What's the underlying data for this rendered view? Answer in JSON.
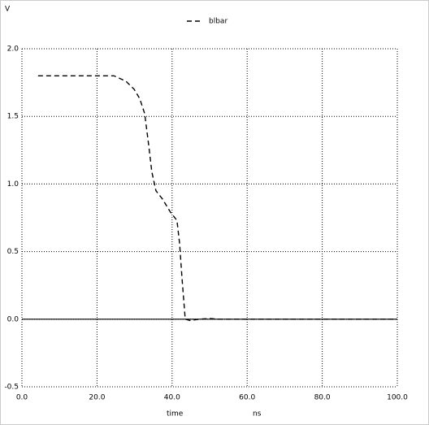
{
  "chart_data": {
    "type": "line",
    "y_label": "V",
    "x_label": "time",
    "x_unit": "ns",
    "xlim": [
      0,
      100
    ],
    "ylim": [
      -0.5,
      2.0
    ],
    "xticks": [
      {
        "value": 0,
        "label": "0.0"
      },
      {
        "value": 20,
        "label": "20.0"
      },
      {
        "value": 40,
        "label": "40.0"
      },
      {
        "value": 60,
        "label": "60.0"
      },
      {
        "value": 80,
        "label": "80.0"
      },
      {
        "value": 100,
        "label": "100.0"
      }
    ],
    "yticks": [
      -0.5,
      {
        "value": 0,
        "label": "0.0"
      },
      0.5,
      {
        "value": 1,
        "label": "1.0"
      },
      1.5,
      {
        "value": 2,
        "label": "2.0"
      }
    ],
    "grid": true,
    "zero_line": true,
    "series": [
      {
        "name": "blbar",
        "color": "#000000",
        "dashed": true,
        "x": [
          4.3,
          24.5,
          27.7,
          29.9,
          31.4,
          32.7,
          33.8,
          34.6,
          35.7,
          37.4,
          39.6,
          41.3,
          42.0,
          42.6,
          43.5,
          44.8,
          47.2,
          50,
          52.6,
          100
        ],
        "values": [
          1.8,
          1.8,
          1.76,
          1.7,
          1.63,
          1.52,
          1.28,
          1.09,
          0.95,
          0.89,
          0.79,
          0.73,
          0.56,
          0.32,
          0.0,
          -0.01,
          0.0,
          0.005,
          0.0,
          0.0
        ]
      }
    ]
  }
}
